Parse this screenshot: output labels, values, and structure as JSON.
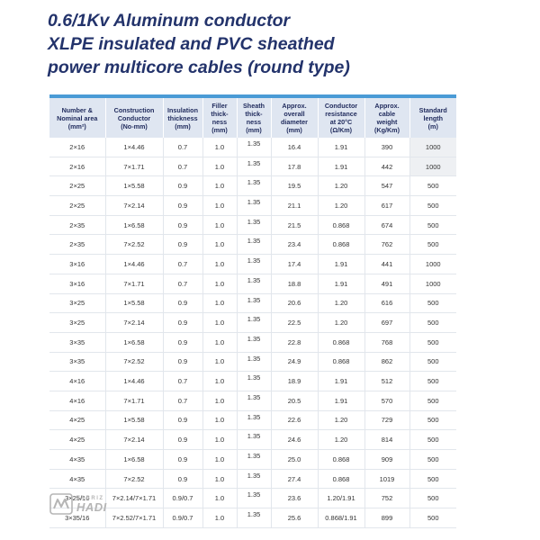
{
  "title": {
    "line1": "0.6/1Kv Aluminum conductor",
    "line2": "XLPE insulated and PVC sheathed",
    "line3": "power multicore cables (round type)"
  },
  "columns": [
    {
      "line1": "Number &",
      "line2": "Nominal area",
      "line3": "(mm²)",
      "line4": ""
    },
    {
      "line1": "Construction",
      "line2": "Conductor",
      "line3": "(No-mm)",
      "line4": ""
    },
    {
      "line1": "Insulation",
      "line2": "thickness",
      "line3": "(mm)",
      "line4": ""
    },
    {
      "line1": "Filler",
      "line2": "thick-",
      "line3": "ness",
      "line4": "(mm)"
    },
    {
      "line1": "Sheath",
      "line2": "thick-",
      "line3": "ness",
      "line4": "(mm)"
    },
    {
      "line1": "Approx.",
      "line2": "overall",
      "line3": "diameter",
      "line4": "(mm)"
    },
    {
      "line1": "Conductor",
      "line2": "resistance",
      "line3": "at 20°C",
      "line4": "(Ω/Km)"
    },
    {
      "line1": "Approx.",
      "line2": "cable",
      "line3": "weight",
      "line4": "(Kg/Km)"
    },
    {
      "line1": "Standard",
      "line2": "length",
      "line3": "(m)",
      "line4": ""
    }
  ],
  "rows": [
    [
      "2×16",
      "1×4.46",
      "0.7",
      "1.0",
      "1.35",
      "16.4",
      "1.91",
      "390",
      "1000"
    ],
    [
      "2×16",
      "7×1.71",
      "0.7",
      "1.0",
      "1.35",
      "17.8",
      "1.91",
      "442",
      "1000"
    ],
    [
      "2×25",
      "1×5.58",
      "0.9",
      "1.0",
      "1.35",
      "19.5",
      "1.20",
      "547",
      "500"
    ],
    [
      "2×25",
      "7×2.14",
      "0.9",
      "1.0",
      "1.35",
      "21.1",
      "1.20",
      "617",
      "500"
    ],
    [
      "2×35",
      "1×6.58",
      "0.9",
      "1.0",
      "1.35",
      "21.5",
      "0.868",
      "674",
      "500"
    ],
    [
      "2×35",
      "7×2.52",
      "0.9",
      "1.0",
      "1.35",
      "23.4",
      "0.868",
      "762",
      "500"
    ],
    [
      "3×16",
      "1×4.46",
      "0.7",
      "1.0",
      "1.35",
      "17.4",
      "1.91",
      "441",
      "1000"
    ],
    [
      "3×16",
      "7×1.71",
      "0.7",
      "1.0",
      "1.35",
      "18.8",
      "1.91",
      "491",
      "1000"
    ],
    [
      "3×25",
      "1×5.58",
      "0.9",
      "1.0",
      "1.35",
      "20.6",
      "1.20",
      "616",
      "500"
    ],
    [
      "3×25",
      "7×2.14",
      "0.9",
      "1.0",
      "1.35",
      "22.5",
      "1.20",
      "697",
      "500"
    ],
    [
      "3×35",
      "1×6.58",
      "0.9",
      "1.0",
      "1.35",
      "22.8",
      "0.868",
      "768",
      "500"
    ],
    [
      "3×35",
      "7×2.52",
      "0.9",
      "1.0",
      "1.35",
      "24.9",
      "0.868",
      "862",
      "500"
    ],
    [
      "4×16",
      "1×4.46",
      "0.7",
      "1.0",
      "1.35",
      "18.9",
      "1.91",
      "512",
      "500"
    ],
    [
      "4×16",
      "7×1.71",
      "0.7",
      "1.0",
      "1.35",
      "20.5",
      "1.91",
      "570",
      "500"
    ],
    [
      "4×25",
      "1×5.58",
      "0.9",
      "1.0",
      "1.35",
      "22.6",
      "1.20",
      "729",
      "500"
    ],
    [
      "4×25",
      "7×2.14",
      "0.9",
      "1.0",
      "1.35",
      "24.6",
      "1.20",
      "814",
      "500"
    ],
    [
      "4×35",
      "1×6.58",
      "0.9",
      "1.0",
      "1.35",
      "25.0",
      "0.868",
      "909",
      "500"
    ],
    [
      "4×35",
      "7×2.52",
      "0.9",
      "1.0",
      "1.35",
      "27.4",
      "0.868",
      "1019",
      "500"
    ],
    [
      "3×25/16",
      "7×2.14/7×1.71",
      "0.9/0.7",
      "1.0",
      "1.35",
      "23.6",
      "1.20/1.91",
      "752",
      "500"
    ],
    [
      "3×35/16",
      "7×2.52/7×1.71",
      "0.9/0.7",
      "1.0",
      "1.35",
      "25.6",
      "0.868/1.91",
      "899",
      "500"
    ]
  ],
  "logo": {
    "top": "TABRIZ",
    "bottom": "HADI"
  },
  "colors": {
    "title": "#23336b",
    "header_bg": "#dfe6f1",
    "header_text": "#1f2a5c",
    "accent_bar": "#4a9bd6",
    "highlight_cell": "#eef0f3",
    "logo": "#b5b5b5"
  }
}
